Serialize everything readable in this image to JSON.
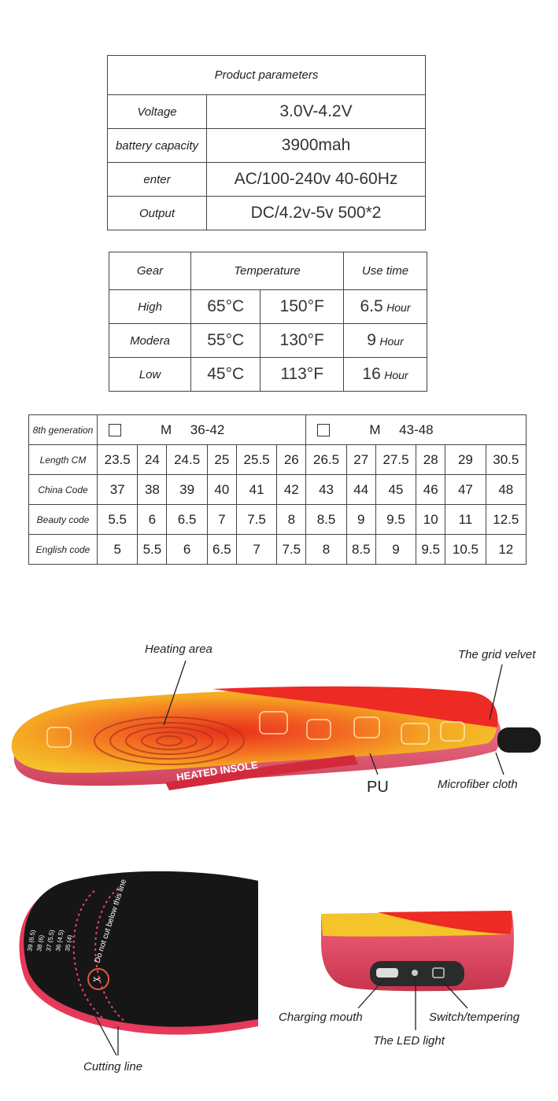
{
  "params": {
    "title": "Product parameters",
    "rows": [
      {
        "label": "Voltage",
        "value": "3.0V-4.2V"
      },
      {
        "label": "battery capacity",
        "value": "3900mah"
      },
      {
        "label": "enter",
        "value": "AC/100-240v 40-60Hz"
      },
      {
        "label": "Output",
        "value": "DC/4.2v-5v 500*2"
      }
    ]
  },
  "gear": {
    "headers": [
      "Gear",
      "Temperature",
      "Use time"
    ],
    "rows": [
      {
        "gear": "High",
        "c": "65°C",
        "f": "150°F",
        "time": "6.5",
        "unit": "Hour"
      },
      {
        "gear": "Modera",
        "c": "55°C",
        "f": "130°F",
        "time": "9",
        "unit": "Hour"
      },
      {
        "gear": "Low",
        "c": "45°C",
        "f": "113°F",
        "time": "16",
        "unit": "Hour"
      }
    ]
  },
  "size": {
    "generation": "8th generation",
    "group1": {
      "size": "M",
      "range": "36-42"
    },
    "group2": {
      "size": "M",
      "range": "43-48"
    },
    "rows": [
      {
        "label": "Length CM",
        "values": [
          "23.5",
          "24",
          "24.5",
          "25",
          "25.5",
          "26",
          "26.5",
          "27",
          "27.5",
          "28",
          "29",
          "30.5"
        ]
      },
      {
        "label": "China Code",
        "values": [
          "37",
          "38",
          "39",
          "40",
          "41",
          "42",
          "43",
          "44",
          "45",
          "46",
          "47",
          "48"
        ]
      },
      {
        "label": "Beauty code",
        "values": [
          "5.5",
          "6",
          "6.5",
          "7",
          "7.5",
          "8",
          "8.5",
          "9",
          "9.5",
          "10",
          "11",
          "12.5"
        ]
      },
      {
        "label": "English code",
        "values": [
          "5",
          "5.5",
          "6",
          "6.5",
          "7",
          "7.5",
          "8",
          "8.5",
          "9",
          "9.5",
          "10.5",
          "12"
        ]
      }
    ]
  },
  "insole": {
    "heating_area": "Heating area",
    "grid_velvet": "The grid velvet",
    "pu": "PU",
    "microfiber": "Microfiber cloth",
    "brand_text": "HEATED INSOLE"
  },
  "bottom": {
    "cutting_line": "Cutting line",
    "do_not_cut": "Do not cut below this line",
    "sizes": [
      "39 (6.5)",
      "38 (6)",
      "37 (5.5)",
      "36 (4.5)",
      "35 (4)"
    ],
    "charging_mouth": "Charging mouth",
    "led_light": "The LED light",
    "switch": "Switch/tempering"
  }
}
